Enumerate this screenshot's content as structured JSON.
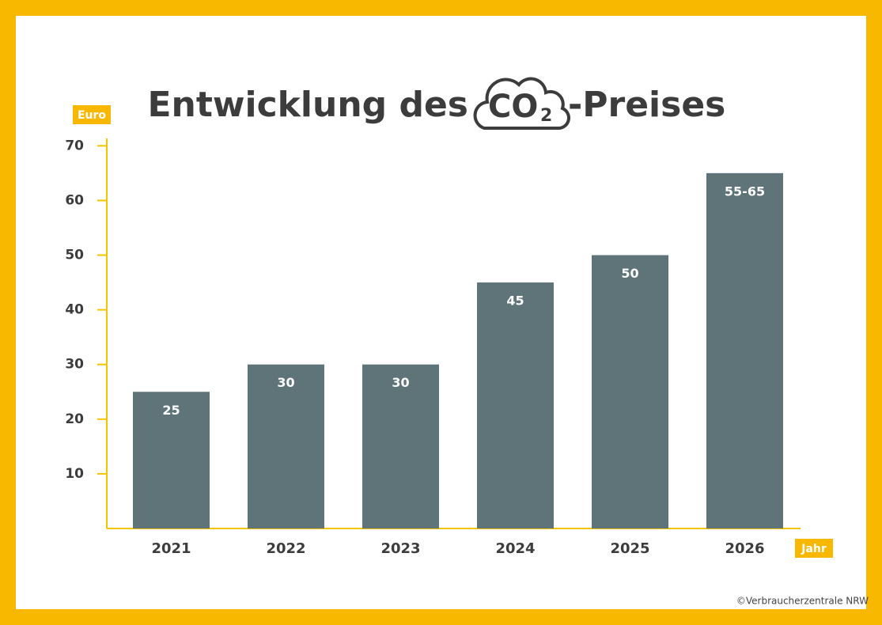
{
  "chart_data": {
    "type": "bar",
    "title_parts": [
      "Entwicklung des",
      "CO",
      "2",
      "-Preises"
    ],
    "y_label": "Euro",
    "x_label": "Jahr",
    "categories": [
      "2021",
      "2022",
      "2023",
      "2024",
      "2025",
      "2026"
    ],
    "values": [
      25,
      30,
      30,
      45,
      50,
      65
    ],
    "value_labels": [
      "25",
      "30",
      "30",
      "45",
      "50",
      "55-65"
    ],
    "color": "#5e7479",
    "ylim": [
      0,
      70
    ],
    "yticks": [
      10,
      20,
      30,
      40,
      50,
      60,
      70
    ],
    "source": "©Verbraucherzentrale NRW"
  }
}
